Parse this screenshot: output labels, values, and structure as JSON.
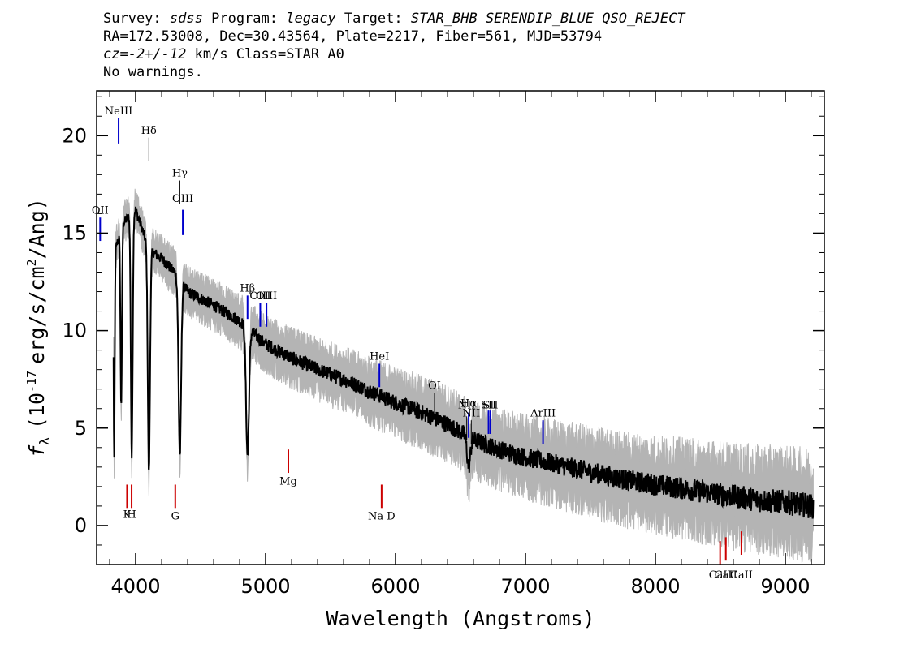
{
  "header": {
    "line1": {
      "survey_label": "Survey:",
      "survey_value": "sdss",
      "program_label": "Program:",
      "program_value": "legacy",
      "target_label": "Target:",
      "target_value": "STAR_BHB SERENDIP_BLUE QSO_REJECT"
    },
    "line2": "RA=172.53008, Dec=30.43564, Plate=2217, Fiber=561, MJD=53794",
    "line3": {
      "cz_label": "cz",
      "cz_value": "=-2+/-12",
      "cz_unit": "km/s Class=STAR A0"
    },
    "line4": "No warnings."
  },
  "chart_data": {
    "type": "line",
    "xlabel": "Wavelength (Angstroms)",
    "ylabel_symbol": "f",
    "ylabel_sub": "λ",
    "ylabel_text_a": "(10",
    "ylabel_exp": "-17",
    "ylabel_text_b": "erg/s/cm",
    "ylabel_exp2": "2",
    "ylabel_text_c": "/Ang)",
    "xlim": [
      3700,
      9300
    ],
    "ylim": [
      -2,
      22.3
    ],
    "x_ticks": [
      4000,
      5000,
      6000,
      7000,
      8000,
      9000
    ],
    "y_ticks": [
      0,
      5,
      10,
      15,
      20
    ],
    "colors": {
      "flux": "#000000",
      "noise": "#b4b4b4",
      "emission": "#0000cc",
      "absorption": "#cc0000",
      "neutral": "#000000"
    },
    "continuum_knots": [
      [
        3830,
        13.8
      ],
      [
        3900,
        15.5
      ],
      [
        4000,
        16.2
      ],
      [
        4100,
        14.2
      ],
      [
        4200,
        13.7
      ],
      [
        4300,
        13.0
      ],
      [
        4400,
        12.0
      ],
      [
        4600,
        11.3
      ],
      [
        4800,
        10.5
      ],
      [
        5000,
        9.3
      ],
      [
        5200,
        8.6
      ],
      [
        5400,
        8.0
      ],
      [
        5600,
        7.5
      ],
      [
        5800,
        6.9
      ],
      [
        6000,
        6.3
      ],
      [
        6200,
        5.8
      ],
      [
        6400,
        5.2
      ],
      [
        6600,
        4.4
      ],
      [
        6800,
        3.9
      ],
      [
        7000,
        3.5
      ],
      [
        7200,
        3.2
      ],
      [
        7400,
        2.9
      ],
      [
        7600,
        2.6
      ],
      [
        7800,
        2.3
      ],
      [
        8000,
        2.1
      ],
      [
        8200,
        1.9
      ],
      [
        8400,
        1.7
      ],
      [
        8600,
        1.5
      ],
      [
        8800,
        1.3
      ],
      [
        9000,
        1.2
      ],
      [
        9200,
        1.0
      ]
    ],
    "absorption_features": [
      {
        "center": 3835,
        "depth": 10.5,
        "width": 6
      },
      {
        "center": 3889,
        "depth": 9.0,
        "width": 8
      },
      {
        "center": 3970,
        "depth": 12.5,
        "width": 10
      },
      {
        "center": 4102,
        "depth": 11.5,
        "width": 12
      },
      {
        "center": 4340,
        "depth": 9.0,
        "width": 14
      },
      {
        "center": 4861,
        "depth": 6.5,
        "width": 16
      },
      {
        "center": 6563,
        "depth": 1.5,
        "width": 18
      }
    ],
    "line_markers": [
      {
        "label": "OII",
        "wave": 3727,
        "y_top": 15.8,
        "y_bottom": 14.6,
        "label_y": 16.0,
        "type": "emission"
      },
      {
        "label": "NeIII",
        "wave": 3869,
        "y_top": 20.9,
        "y_bottom": 19.6,
        "label_y": 21.1,
        "type": "emission"
      },
      {
        "label": "Hδ",
        "wave": 4102,
        "y_top": 19.9,
        "y_bottom": 18.7,
        "label_y": 20.1,
        "type": "neutral"
      },
      {
        "label": "Hγ",
        "wave": 4340,
        "y_top": 17.7,
        "y_bottom": 16.5,
        "label_y": 17.9,
        "type": "neutral"
      },
      {
        "label": "OIII",
        "wave": 4363,
        "y_top": 16.2,
        "y_bottom": 14.9,
        "label_y": 16.6,
        "type": "emission"
      },
      {
        "label": "Hβ",
        "wave": 4861,
        "y_top": 11.8,
        "y_bottom": 10.6,
        "label_y": 12.0,
        "type": "emission"
      },
      {
        "label": "OIII",
        "wave": 4959,
        "y_top": 11.4,
        "y_bottom": 10.2,
        "label_y": 11.6,
        "type": "emission"
      },
      {
        "label": "OIII",
        "wave": 5007,
        "y_top": 11.4,
        "y_bottom": 10.2,
        "label_y": 11.6,
        "type": "emission"
      },
      {
        "label": "HeI",
        "wave": 5876,
        "y_top": 8.3,
        "y_bottom": 7.1,
        "label_y": 8.5,
        "type": "emission"
      },
      {
        "label": "OI",
        "wave": 6300,
        "y_top": 6.8,
        "y_bottom": 5.6,
        "label_y": 7.0,
        "type": "neutral"
      },
      {
        "label": "NII",
        "wave": 6548,
        "y_top": 5.6,
        "y_bottom": 4.4,
        "label_y": 6.0,
        "type": "neutral"
      },
      {
        "label": "Hα",
        "wave": 6563,
        "y_top": 5.8,
        "y_bottom": 4.5,
        "label_y": 6.1,
        "type": "emission"
      },
      {
        "label": "NII",
        "wave": 6583,
        "y_top": 5.4,
        "y_bottom": 4.2,
        "label_y": 5.6,
        "type": "neutral"
      },
      {
        "label": "SII",
        "wave": 6716,
        "y_top": 5.9,
        "y_bottom": 4.7,
        "label_y": 6.0,
        "type": "emission"
      },
      {
        "label": "SII",
        "wave": 6731,
        "y_top": 5.9,
        "y_bottom": 4.7,
        "label_y": 6.0,
        "type": "emission"
      },
      {
        "label": "ArIII",
        "wave": 7135,
        "y_top": 5.4,
        "y_bottom": 4.2,
        "label_y": 5.6,
        "type": "emission"
      },
      {
        "label": "K",
        "wave": 3934,
        "y_top": 2.1,
        "y_bottom": 0.9,
        "label_y": 0.4,
        "type": "absorption"
      },
      {
        "label": "H",
        "wave": 3969,
        "y_top": 2.1,
        "y_bottom": 0.9,
        "label_y": 0.4,
        "type": "absorption"
      },
      {
        "label": "G",
        "wave": 4305,
        "y_top": 2.1,
        "y_bottom": 0.9,
        "label_y": 0.3,
        "type": "absorption"
      },
      {
        "label": "Mg",
        "wave": 5175,
        "y_top": 3.9,
        "y_bottom": 2.7,
        "label_y": 2.1,
        "type": "absorption"
      },
      {
        "label": "Na D",
        "wave": 5893,
        "y_top": 2.1,
        "y_bottom": 0.9,
        "label_y": 0.3,
        "type": "absorption"
      },
      {
        "label": "CaII",
        "wave": 8498,
        "y_top": -0.8,
        "y_bottom": -2.0,
        "label_y": -2.7,
        "type": "absorption"
      },
      {
        "label": "CaII",
        "wave": 8542,
        "y_top": -0.6,
        "y_bottom": -1.8,
        "label_y": -2.7,
        "type": "absorption"
      },
      {
        "label": "CaII",
        "wave": 8662,
        "y_top": -0.3,
        "y_bottom": -1.5,
        "label_y": -2.7,
        "type": "absorption"
      }
    ]
  }
}
